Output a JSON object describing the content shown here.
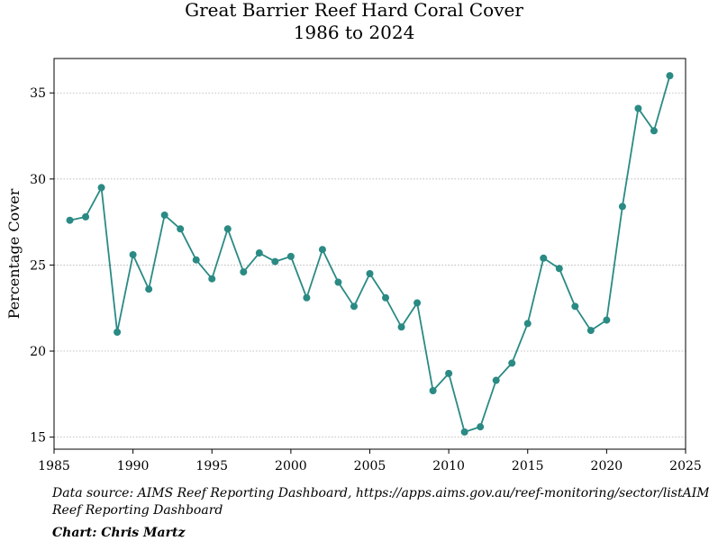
{
  "chart_data": {
    "type": "line",
    "title": "Great Barrier Reef Hard Coral Cover",
    "subtitle": "1986 to 2024",
    "xlabel": "",
    "ylabel": "Percentage Cover",
    "xlim": [
      1985,
      2025
    ],
    "ylim": [
      14.3,
      37.0
    ],
    "xticks": [
      1985,
      1990,
      1995,
      2000,
      2005,
      2010,
      2015,
      2020,
      2025
    ],
    "yticks": [
      15,
      20,
      25,
      30,
      35
    ],
    "grid": "horizontal-dotted",
    "series_color": "#2a8a84",
    "x": [
      1986,
      1987,
      1988,
      1989,
      1990,
      1991,
      1992,
      1993,
      1994,
      1995,
      1996,
      1997,
      1998,
      1999,
      2000,
      2001,
      2002,
      2003,
      2004,
      2005,
      2006,
      2007,
      2008,
      2009,
      2010,
      2011,
      2012,
      2013,
      2014,
      2015,
      2016,
      2017,
      2018,
      2019,
      2020,
      2021,
      2022,
      2023,
      2024
    ],
    "y": [
      27.6,
      27.8,
      29.5,
      21.1,
      25.6,
      23.6,
      27.9,
      27.1,
      25.3,
      24.2,
      27.1,
      24.6,
      25.7,
      25.2,
      25.5,
      23.1,
      25.9,
      24.0,
      22.6,
      24.5,
      23.1,
      21.4,
      22.8,
      17.7,
      18.7,
      15.3,
      15.6,
      18.3,
      19.3,
      21.6,
      25.4,
      24.8,
      22.6,
      21.2,
      21.8,
      28.4,
      34.1,
      32.8,
      36.0
    ]
  },
  "notes": {
    "source_line1": "Data source: AIMS Reef Reporting Dashboard, https://apps.aims.gov.au/reef-monitoring/sector/listAIMS",
    "source_line2": "Reef Reporting Dashboard",
    "credit": "Chart: Chris Martz"
  }
}
